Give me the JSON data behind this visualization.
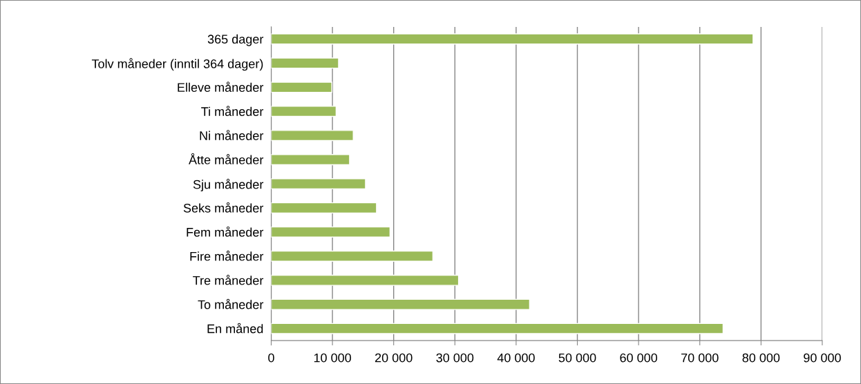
{
  "chart_data": {
    "type": "bar",
    "orientation": "horizontal",
    "categories": [
      "365 dager",
      "Tolv måneder (inntil 364 dager)",
      "Elleve måneder",
      "Ti måneder",
      "Ni måneder",
      "Åtte måneder",
      "Sju måneder",
      "Seks måneder",
      "Fem måneder",
      "Fire måneder",
      "Tre måneder",
      "To måneder",
      "En måned"
    ],
    "values": [
      78700,
      11000,
      9900,
      10600,
      13400,
      12800,
      15400,
      17200,
      19400,
      26400,
      30600,
      42200,
      73800
    ],
    "color": "#9bbb59",
    "xlim": [
      0,
      90000
    ],
    "xticks": [
      0,
      {
        "value": 10000,
        "label": "10 000"
      },
      {
        "value": 20000,
        "label": "20 000"
      },
      {
        "value": 30000,
        "label": "30 000"
      },
      {
        "value": 40000,
        "label": "40 000"
      },
      {
        "value": 50000,
        "label": "50 000"
      },
      {
        "value": 60000,
        "label": "60 000"
      },
      {
        "value": 70000,
        "label": "70 000"
      },
      {
        "value": 80000,
        "label": "80 000"
      },
      {
        "value": 90000,
        "label": "90 000"
      }
    ],
    "grid": "x",
    "legend": false
  }
}
